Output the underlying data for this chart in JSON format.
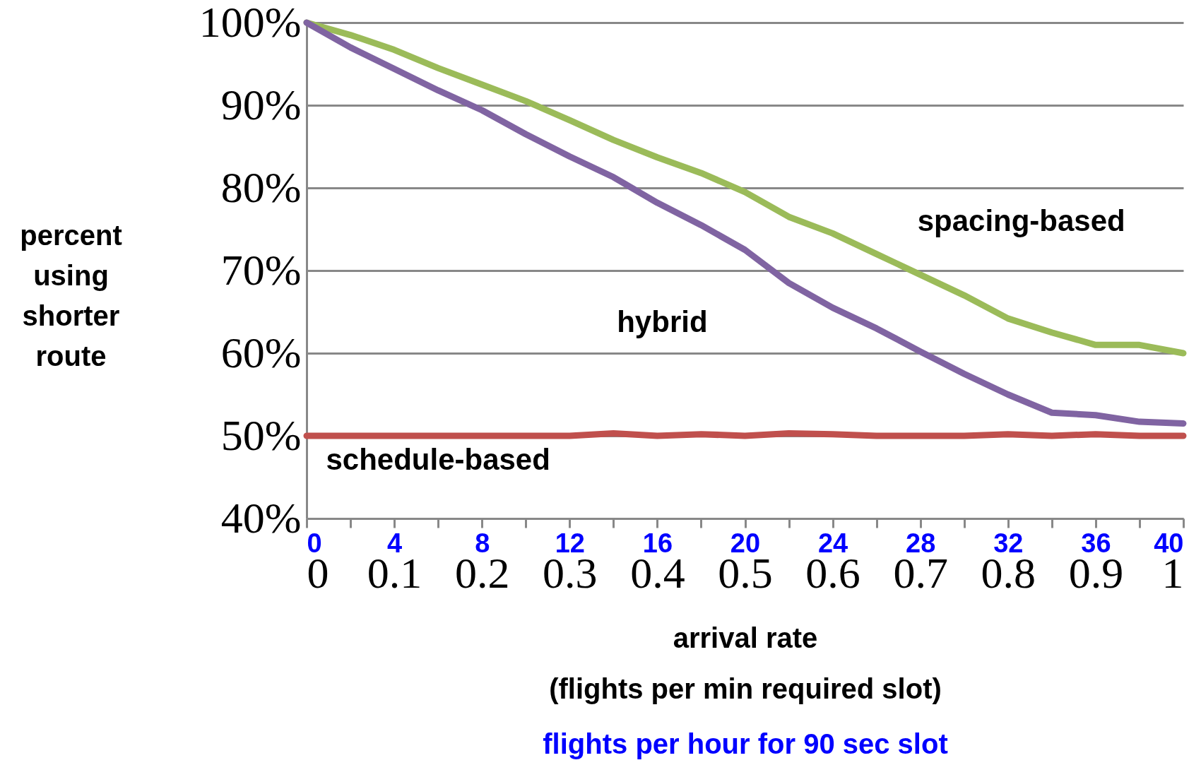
{
  "chart_data": {
    "type": "line",
    "xlabel": "arrival rate (flights per min required slot)",
    "x2label": "flights per hour for 90 sec slot",
    "ylabel": "percent using shorter route",
    "x": [
      0,
      0.05,
      0.1,
      0.15,
      0.2,
      0.25,
      0.3,
      0.35,
      0.4,
      0.45,
      0.5,
      0.55,
      0.6,
      0.65,
      0.7,
      0.75,
      0.8,
      0.85,
      0.9,
      0.95,
      1
    ],
    "series": [
      {
        "name": "spacing-based",
        "color": "#9bbb59",
        "values": [
          100,
          98.5,
          96.7,
          94.5,
          92.5,
          90.5,
          88.2,
          85.8,
          83.7,
          81.8,
          79.5,
          76.5,
          74.5,
          72,
          69.5,
          67,
          64.2,
          62.5,
          61,
          61,
          60
        ]
      },
      {
        "name": "hybrid",
        "color": "#8064a2",
        "values": [
          100,
          97,
          94.4,
          91.8,
          89.4,
          86.5,
          83.8,
          81.3,
          78.2,
          75.5,
          72.5,
          68.5,
          65.5,
          63,
          60.2,
          57.5,
          55,
          52.8,
          52.5,
          51.7,
          51.5
        ]
      },
      {
        "name": "schedule-based",
        "color": "#c0504d",
        "values": [
          50,
          50,
          50,
          50,
          50,
          50,
          50,
          50.3,
          50,
          50.2,
          50,
          50.3,
          50.2,
          50,
          50,
          50,
          50.2,
          50,
          50.2,
          50,
          50
        ]
      }
    ],
    "xlim": [
      0,
      1
    ],
    "xticks": [
      0,
      0.1,
      0.2,
      0.3,
      0.4,
      0.5,
      0.6,
      0.7,
      0.8,
      0.9,
      1
    ],
    "x2lim": [
      0,
      40
    ],
    "x2ticks": [
      0,
      {
        "value": 2,
        "label": null
      },
      4,
      {
        "value": 6,
        "label": null
      },
      8,
      {
        "value": 10,
        "label": null
      },
      12,
      {
        "value": 14,
        "label": null
      },
      16,
      {
        "value": 18,
        "label": null
      },
      20,
      {
        "value": 22,
        "label": null
      },
      24,
      {
        "value": 26,
        "label": null
      },
      28,
      {
        "value": 30,
        "label": null
      },
      32,
      {
        "value": 34,
        "label": null
      },
      36,
      {
        "value": 38,
        "label": null
      },
      40
    ],
    "ylim": [
      40,
      100
    ],
    "yticks": [
      {
        "value": 40,
        "label": "40%"
      },
      {
        "value": 50,
        "label": "50%"
      },
      {
        "value": 60,
        "label": "60%"
      },
      {
        "value": 70,
        "label": "70%"
      },
      {
        "value": 80,
        "label": "80%"
      },
      {
        "value": 90,
        "label": "90%"
      },
      {
        "value": 100,
        "label": "100%"
      }
    ],
    "grid": "y",
    "legend": false,
    "marker": "none",
    "line_style": "solid"
  }
}
